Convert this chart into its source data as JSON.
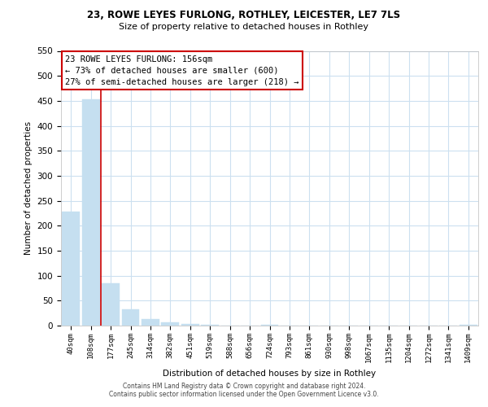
{
  "title1": "23, ROWE LEYES FURLONG, ROTHLEY, LEICESTER, LE7 7LS",
  "title2": "Size of property relative to detached houses in Rothley",
  "xlabel": "Distribution of detached houses by size in Rothley",
  "ylabel": "Number of detached properties",
  "bar_labels": [
    "40sqm",
    "108sqm",
    "177sqm",
    "245sqm",
    "314sqm",
    "382sqm",
    "451sqm",
    "519sqm",
    "588sqm",
    "656sqm",
    "724sqm",
    "793sqm",
    "861sqm",
    "930sqm",
    "998sqm",
    "1067sqm",
    "1135sqm",
    "1204sqm",
    "1272sqm",
    "1341sqm",
    "1409sqm"
  ],
  "bar_values": [
    228,
    453,
    85,
    32,
    13,
    6,
    3,
    1,
    0,
    0,
    1,
    0,
    0,
    0,
    0,
    0,
    0,
    0,
    0,
    0,
    1
  ],
  "bar_color": "#c5dff0",
  "bar_edge_color": "#c5dff0",
  "vline_x": 1.5,
  "vline_color": "#cc0000",
  "annotation_line1": "23 ROWE LEYES FURLONG: 156sqm",
  "annotation_line2": "← 73% of detached houses are smaller (600)",
  "annotation_line3": "27% of semi-detached houses are larger (218) →",
  "ylim": [
    0,
    550
  ],
  "yticks": [
    0,
    50,
    100,
    150,
    200,
    250,
    300,
    350,
    400,
    450,
    500,
    550
  ],
  "footer1": "Contains HM Land Registry data © Crown copyright and database right 2024.",
  "footer2": "Contains public sector information licensed under the Open Government Licence v3.0.",
  "background_color": "#ffffff",
  "grid_color": "#cce0f0"
}
